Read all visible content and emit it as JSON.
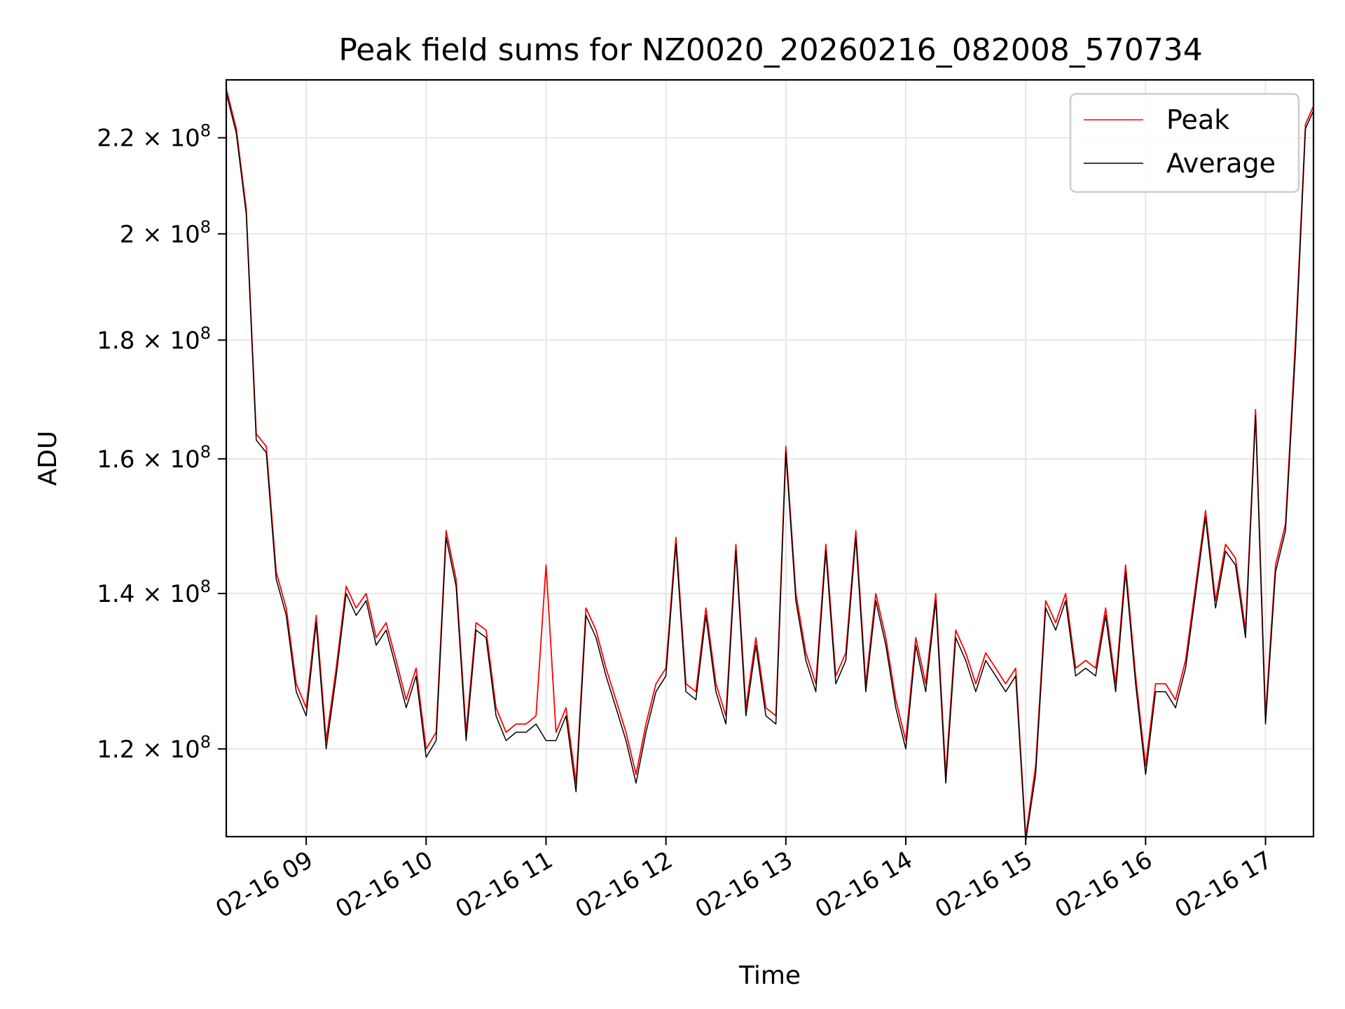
{
  "chart_data": {
    "type": "line",
    "title": "Peak field sums for NZ0020_20260216_082008_570734",
    "xlabel": "Time",
    "ylabel": "ADU",
    "y_scale": "log",
    "ylim": [
      110000000,
      233000000
    ],
    "xlim": [
      "2026-02-16 08:20",
      "2026-02-16 17:24"
    ],
    "grid": true,
    "legend_position": "top-right",
    "x_ticks": [
      {
        "time": "2026-02-16 09:00",
        "label": "02-16 09"
      },
      {
        "time": "2026-02-16 10:00",
        "label": "02-16 10"
      },
      {
        "time": "2026-02-16 11:00",
        "label": "02-16 11"
      },
      {
        "time": "2026-02-16 12:00",
        "label": "02-16 12"
      },
      {
        "time": "2026-02-16 13:00",
        "label": "02-16 13"
      },
      {
        "time": "2026-02-16 14:00",
        "label": "02-16 14"
      },
      {
        "time": "2026-02-16 15:00",
        "label": "02-16 15"
      },
      {
        "time": "2026-02-16 16:00",
        "label": "02-16 16"
      },
      {
        "time": "2026-02-16 17:00",
        "label": "02-16 17"
      }
    ],
    "y_ticks": [
      {
        "value": 120000000,
        "mantissa": "1.2",
        "exponent": "8"
      },
      {
        "value": 140000000,
        "mantissa": "1.4",
        "exponent": "8"
      },
      {
        "value": 160000000,
        "mantissa": "1.6",
        "exponent": "8"
      },
      {
        "value": 180000000,
        "mantissa": "1.8",
        "exponent": "8"
      },
      {
        "value": 200000000,
        "mantissa": "2",
        "exponent": "8"
      },
      {
        "value": 220000000,
        "mantissa": "2.2",
        "exponent": "8"
      }
    ],
    "x": [
      "2026-02-16 08:20",
      "2026-02-16 08:25",
      "2026-02-16 08:30",
      "2026-02-16 08:35",
      "2026-02-16 08:40",
      "2026-02-16 08:45",
      "2026-02-16 08:50",
      "2026-02-16 08:55",
      "2026-02-16 09:00",
      "2026-02-16 09:05",
      "2026-02-16 09:10",
      "2026-02-16 09:15",
      "2026-02-16 09:20",
      "2026-02-16 09:25",
      "2026-02-16 09:30",
      "2026-02-16 09:35",
      "2026-02-16 09:40",
      "2026-02-16 09:45",
      "2026-02-16 09:50",
      "2026-02-16 09:55",
      "2026-02-16 10:00",
      "2026-02-16 10:05",
      "2026-02-16 10:10",
      "2026-02-16 10:15",
      "2026-02-16 10:20",
      "2026-02-16 10:25",
      "2026-02-16 10:30",
      "2026-02-16 10:35",
      "2026-02-16 10:40",
      "2026-02-16 10:45",
      "2026-02-16 10:50",
      "2026-02-16 10:55",
      "2026-02-16 11:00",
      "2026-02-16 11:05",
      "2026-02-16 11:10",
      "2026-02-16 11:15",
      "2026-02-16 11:20",
      "2026-02-16 11:25",
      "2026-02-16 11:30",
      "2026-02-16 11:35",
      "2026-02-16 11:40",
      "2026-02-16 11:45",
      "2026-02-16 11:50",
      "2026-02-16 11:55",
      "2026-02-16 12:00",
      "2026-02-16 12:05",
      "2026-02-16 12:10",
      "2026-02-16 12:15",
      "2026-02-16 12:20",
      "2026-02-16 12:25",
      "2026-02-16 12:30",
      "2026-02-16 12:35",
      "2026-02-16 12:40",
      "2026-02-16 12:45",
      "2026-02-16 12:50",
      "2026-02-16 12:55",
      "2026-02-16 13:00",
      "2026-02-16 13:05",
      "2026-02-16 13:10",
      "2026-02-16 13:15",
      "2026-02-16 13:20",
      "2026-02-16 13:25",
      "2026-02-16 13:30",
      "2026-02-16 13:35",
      "2026-02-16 13:40",
      "2026-02-16 13:45",
      "2026-02-16 13:50",
      "2026-02-16 13:55",
      "2026-02-16 14:00",
      "2026-02-16 14:05",
      "2026-02-16 14:10",
      "2026-02-16 14:15",
      "2026-02-16 14:20",
      "2026-02-16 14:25",
      "2026-02-16 14:30",
      "2026-02-16 14:35",
      "2026-02-16 14:40",
      "2026-02-16 14:45",
      "2026-02-16 14:50",
      "2026-02-16 14:55",
      "2026-02-16 15:00",
      "2026-02-16 15:05",
      "2026-02-16 15:10",
      "2026-02-16 15:15",
      "2026-02-16 15:20",
      "2026-02-16 15:25",
      "2026-02-16 15:30",
      "2026-02-16 15:35",
      "2026-02-16 15:40",
      "2026-02-16 15:45",
      "2026-02-16 15:50",
      "2026-02-16 15:55",
      "2026-02-16 16:00",
      "2026-02-16 16:05",
      "2026-02-16 16:10",
      "2026-02-16 16:15",
      "2026-02-16 16:20",
      "2026-02-16 16:25",
      "2026-02-16 16:30",
      "2026-02-16 16:35",
      "2026-02-16 16:40",
      "2026-02-16 16:45",
      "2026-02-16 16:50",
      "2026-02-16 16:55",
      "2026-02-16 17:00",
      "2026-02-16 17:05",
      "2026-02-16 17:10",
      "2026-02-16 17:15",
      "2026-02-16 17:20",
      "2026-02-16 17:24"
    ],
    "series": [
      {
        "name": "Peak",
        "color": "#ff0000",
        "values": [
          231000000,
          222000000,
          205000000,
          164000000,
          162000000,
          143000000,
          138000000,
          128000000,
          125000000,
          137000000,
          121000000,
          130000000,
          141000000,
          138000000,
          140000000,
          134000000,
          136000000,
          131000000,
          126000000,
          130000000,
          120000000,
          122000000,
          149000000,
          142000000,
          122000000,
          136000000,
          135000000,
          125000000,
          122000000,
          123000000,
          123000000,
          124000000,
          144000000,
          122000000,
          125000000,
          116000000,
          138000000,
          135000000,
          130000000,
          126000000,
          122000000,
          117000000,
          123000000,
          128000000,
          130000000,
          148000000,
          128000000,
          127000000,
          138000000,
          128000000,
          124000000,
          147000000,
          125000000,
          134000000,
          125000000,
          124000000,
          162000000,
          140000000,
          132000000,
          128000000,
          147000000,
          129000000,
          132000000,
          149000000,
          128000000,
          140000000,
          134000000,
          126000000,
          121000000,
          134000000,
          128000000,
          140000000,
          117000000,
          135000000,
          132000000,
          128000000,
          132000000,
          130000000,
          128000000,
          130000000,
          110000000,
          118000000,
          139000000,
          136000000,
          140000000,
          130000000,
          131000000,
          130000000,
          138000000,
          128000000,
          144000000,
          129000000,
          118000000,
          128000000,
          128000000,
          126000000,
          131000000,
          141000000,
          152000000,
          139000000,
          147000000,
          145000000,
          135000000,
          168000000,
          124000000,
          144000000,
          150000000,
          180000000,
          223000000,
          227000000
        ]
      },
      {
        "name": "Average",
        "color": "#000000",
        "values": [
          230000000,
          221000000,
          204000000,
          163000000,
          161000000,
          142000000,
          137000000,
          127000000,
          124000000,
          136000000,
          120000000,
          129000000,
          140000000,
          137000000,
          139000000,
          133000000,
          135000000,
          130000000,
          125000000,
          129000000,
          119000000,
          121000000,
          148000000,
          141000000,
          121000000,
          135000000,
          134000000,
          124000000,
          121000000,
          122000000,
          122000000,
          123000000,
          121000000,
          121000000,
          124000000,
          115000000,
          137000000,
          134000000,
          129000000,
          125000000,
          121000000,
          116000000,
          122000000,
          127000000,
          129000000,
          147000000,
          127000000,
          126000000,
          137000000,
          127000000,
          123000000,
          146000000,
          124000000,
          133000000,
          124000000,
          123000000,
          161000000,
          139000000,
          131000000,
          127000000,
          146000000,
          128000000,
          131000000,
          148000000,
          127000000,
          139000000,
          133000000,
          125000000,
          120000000,
          133000000,
          127000000,
          139000000,
          116000000,
          134000000,
          131000000,
          127000000,
          131000000,
          129000000,
          127000000,
          129000000,
          109500000,
          117000000,
          138000000,
          135000000,
          139000000,
          129000000,
          130000000,
          129000000,
          137000000,
          127000000,
          143000000,
          128000000,
          117000000,
          127000000,
          127000000,
          125000000,
          130000000,
          140000000,
          151000000,
          138000000,
          146000000,
          144000000,
          134000000,
          167000000,
          123000000,
          143000000,
          149000000,
          178000000,
          222000000,
          226000000
        ]
      }
    ]
  }
}
